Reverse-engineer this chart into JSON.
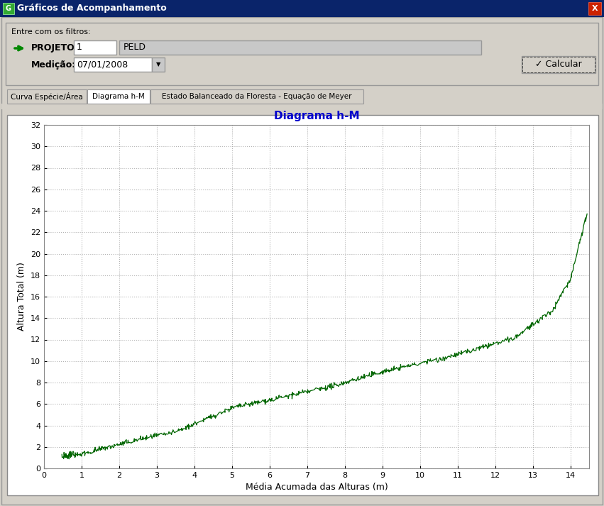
{
  "title": "Diagrama h-M",
  "title_color": "#0000CC",
  "xlabel": "Média Acumada das Alturas (m)",
  "ylabel": "Altura Total (m)",
  "xlim": [
    0,
    14.5
  ],
  "ylim": [
    0,
    32
  ],
  "xticks": [
    0,
    1,
    2,
    3,
    4,
    5,
    6,
    7,
    8,
    9,
    10,
    11,
    12,
    13,
    14
  ],
  "yticks": [
    0,
    2,
    4,
    6,
    8,
    10,
    12,
    14,
    16,
    18,
    20,
    22,
    24,
    26,
    28,
    30,
    32
  ],
  "line_color": "#006600",
  "bg_color": "#FFFFFF",
  "panel_bg": "#D4D0C8",
  "grid_color": "#AAAAAA",
  "window_title": "Gráficos de Acompanhamento",
  "tab_labels": [
    "Curva Espécie/Área",
    "Diagrama h-M",
    "Estado Balanceado da Floresta - Equação de Meyer"
  ],
  "projeto_label": "PROJETO:",
  "projeto_value": "1",
  "projeto_name": "PELD",
  "medicao_label": "Medição:",
  "medicao_value": "07/01/2008",
  "filtros_label": "Entre com os filtros:",
  "title_bar_color": "#0A246A",
  "close_btn_color": "#CC2200",
  "active_tab": 1
}
